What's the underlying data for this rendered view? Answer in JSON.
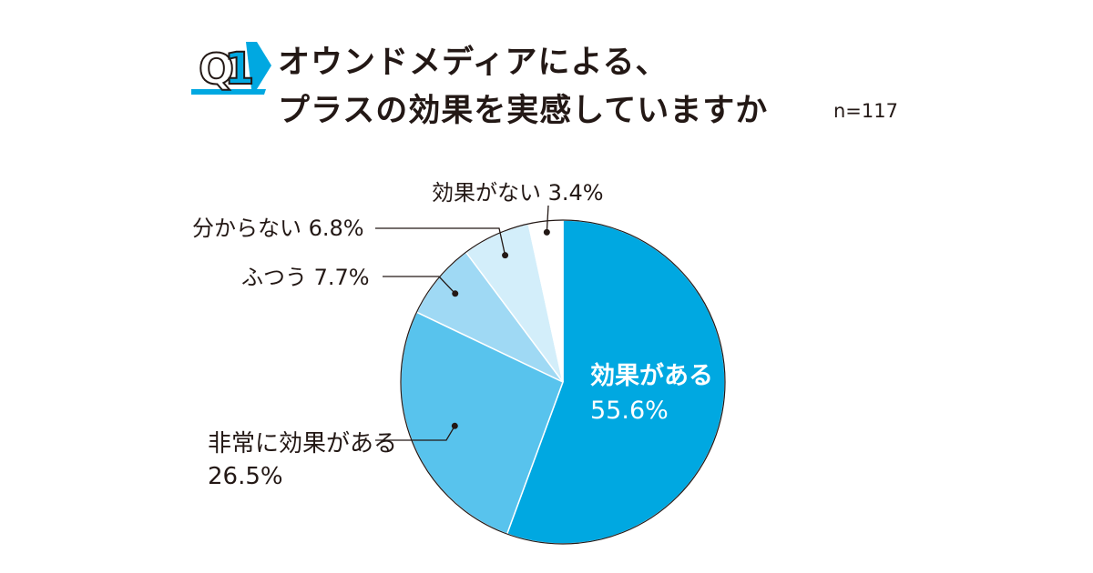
{
  "question": {
    "number_prefix": "Q",
    "number": "1",
    "title_line1": "オウンドメディアによる、",
    "title_line2": "プラスの効果を実感していますか",
    "sample_size": "n=117"
  },
  "chart_data": {
    "type": "pie",
    "title": "オウンドメディアによる、プラスの効果を実感していますか",
    "slices": [
      {
        "label": "効果がある",
        "value": 55.6,
        "value_label": "55.6%",
        "color": "#00a8e1"
      },
      {
        "label": "非常に効果がある",
        "value": 26.5,
        "value_label": "26.5%",
        "color": "#58c3ed"
      },
      {
        "label": "ふつう",
        "value": 7.7,
        "value_label": "7.7%",
        "color": "#9fd9f4"
      },
      {
        "label": "分からない",
        "value": 6.8,
        "value_label": "6.8%",
        "color": "#d3eefa"
      },
      {
        "label": "効果がない",
        "value": 3.4,
        "value_label": "3.4%",
        "color": "#ffffff"
      }
    ],
    "start": "12 o'clock",
    "direction": "clockwise"
  },
  "colors": {
    "accent": "#00a8e1",
    "text": "#231815",
    "outline": "#231815"
  }
}
